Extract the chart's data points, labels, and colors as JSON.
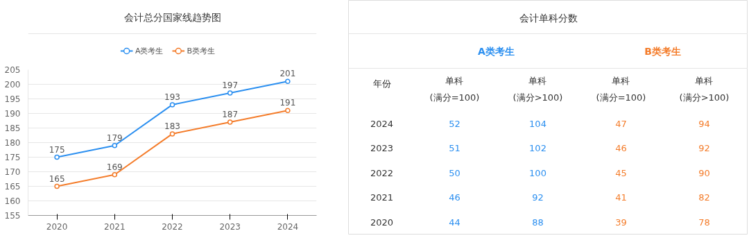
{
  "chart_data": [
    {
      "type": "line",
      "title": "会计总分国家线趋势图",
      "categories": [
        "2020",
        "2021",
        "2022",
        "2023",
        "2024"
      ],
      "series": [
        {
          "name": "A类考生",
          "color": "#2b8ff0",
          "values": [
            175,
            179,
            193,
            197,
            201
          ]
        },
        {
          "name": "B类考生",
          "color": "#f47c2a",
          "values": [
            165,
            169,
            183,
            187,
            191
          ]
        }
      ],
      "ylim": [
        155,
        205
      ],
      "yticks": [
        155,
        160,
        165,
        170,
        175,
        180,
        185,
        190,
        195,
        200,
        205
      ],
      "grid": "y",
      "legend": "top",
      "marker": "circle",
      "data_labels": true
    },
    {
      "type": "heatmap",
      "title": "会计单科分数",
      "legend_title": "年份",
      "categories": [
        "单科\n(满分=100)",
        "单科\n(满分>100)",
        "单科\n(满分=100)",
        "单科\n(满分>100)"
      ],
      "y_categories": [
        "2024",
        "2023",
        "2022",
        "2021",
        "2020"
      ],
      "cells": [
        [
          52,
          104,
          47,
          94
        ],
        [
          51,
          102,
          46,
          92
        ],
        [
          50,
          100,
          45,
          90
        ],
        [
          46,
          92,
          41,
          82
        ],
        [
          44,
          88,
          39,
          78
        ]
      ],
      "colors": [
        "#2b8ff0",
        "#2b8ff0",
        "#f47c2a",
        "#f47c2a"
      ],
      "annotations": [
        "A类考生",
        "B类考生"
      ],
      "data_labels": true
    }
  ]
}
